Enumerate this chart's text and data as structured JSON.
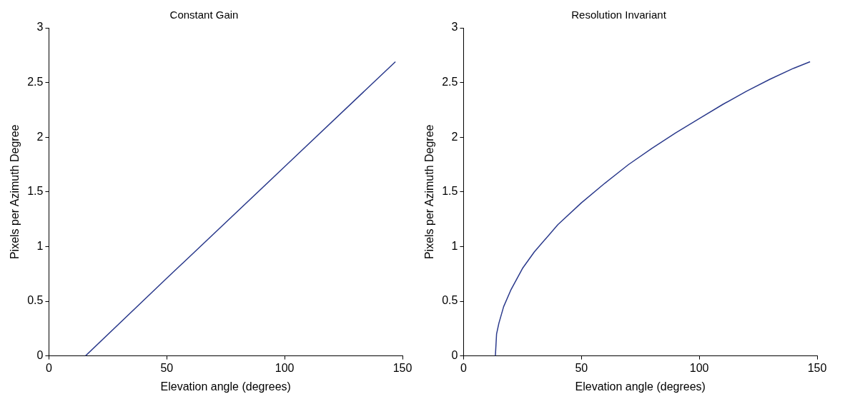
{
  "chart_data": [
    {
      "type": "line",
      "title": "Constant Gain",
      "xlabel": "Elevation angle (degrees)",
      "ylabel": "Pixels per Azimuth Degree",
      "x": [
        15.5,
        50,
        100,
        147
      ],
      "series": [
        {
          "color": "#2b3a8c",
          "values": [
            0,
            0.71,
            1.73,
            2.69
          ]
        }
      ],
      "xlim": [
        0,
        150
      ],
      "ylim": [
        0,
        3
      ],
      "xticks": [
        0,
        50,
        100,
        150
      ],
      "yticks": [
        0,
        0.5,
        1,
        1.5,
        2,
        2.5,
        3
      ]
    },
    {
      "type": "line",
      "title": "Resolution Invariant",
      "xlabel": "Elevation angle (degrees)",
      "ylabel": "Pixels per Azimuth Degree",
      "x": [
        13.5,
        14,
        15,
        17,
        20,
        25,
        30,
        40,
        50,
        60,
        70,
        80,
        90,
        100,
        110,
        120,
        130,
        140,
        147
      ],
      "series": [
        {
          "color": "#2b3a8c",
          "values": [
            0,
            0.2,
            0.3,
            0.45,
            0.6,
            0.8,
            0.95,
            1.2,
            1.4,
            1.58,
            1.75,
            1.9,
            2.04,
            2.17,
            2.3,
            2.42,
            2.53,
            2.63,
            2.69
          ]
        }
      ],
      "xlim": [
        0,
        150
      ],
      "ylim": [
        0,
        3
      ],
      "xticks": [
        0,
        50,
        100,
        150
      ],
      "yticks": [
        0,
        0.5,
        1,
        1.5,
        2,
        2.5,
        3
      ]
    }
  ]
}
